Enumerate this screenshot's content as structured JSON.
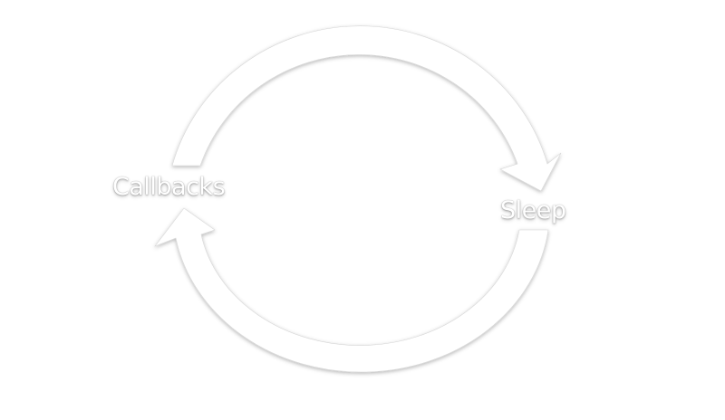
{
  "diagram": {
    "nodes": [
      {
        "id": "callbacks",
        "label": "Callbacks"
      },
      {
        "id": "sleep",
        "label": "Sleep"
      }
    ],
    "edges": [
      {
        "from": "callbacks",
        "to": "sleep"
      },
      {
        "from": "sleep",
        "to": "callbacks"
      }
    ],
    "colors": {
      "background": "#ffffff",
      "arrow_fill": "#ffffff",
      "shadow": "#9a9a9a"
    }
  }
}
